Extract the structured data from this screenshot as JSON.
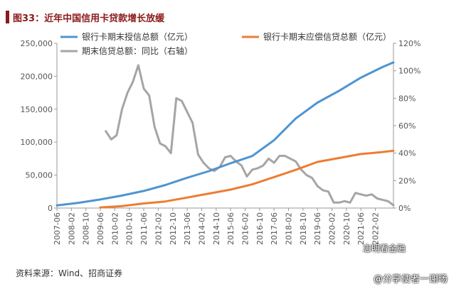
{
  "header": {
    "title": "图33：近年中国信用卡贷款增长放缓"
  },
  "footer": {
    "source": "资料来源：Wind、招商证券"
  },
  "watermarks": {
    "handle": "志明看金融",
    "weibo": "@分享使者一谢旸"
  },
  "chart_data": {
    "type": "line",
    "left_axis": {
      "ylim": [
        0,
        250000
      ],
      "ticks": [
        "0",
        "50,000",
        "100,000",
        "150,000",
        "200,000",
        "250,000"
      ]
    },
    "right_axis": {
      "ylim": [
        0,
        120
      ],
      "ticks": [
        "0%",
        "20%",
        "40%",
        "60%",
        "80%",
        "100%",
        "120%"
      ]
    },
    "x_ticks": [
      "2007-06",
      "2008-02",
      "2008-10",
      "2009-06",
      "2010-02",
      "2010-10",
      "2011-06",
      "2012-02",
      "2012-10",
      "2013-06",
      "2014-02",
      "2014-10",
      "2015-06",
      "2016-02",
      "2016-10",
      "2017-06",
      "2018-02",
      "2018-10",
      "2019-06",
      "2020-02",
      "2020-10",
      "2021-06",
      "2022-02"
    ],
    "x_start": "2007-06",
    "x_end": "2022-12",
    "grid": false,
    "legend_position": "top",
    "series": [
      {
        "name": "银行卡期末授信总额（亿元）",
        "color": "#4e95d0",
        "axis": "left",
        "x": [
          "2007-06",
          "2008-06",
          "2009-06",
          "2010-06",
          "2011-06",
          "2012-06",
          "2013-06",
          "2014-06",
          "2015-06",
          "2016-06",
          "2017-06",
          "2018-06",
          "2019-06",
          "2020-06",
          "2021-06",
          "2022-06",
          "2022-12"
        ],
        "values": [
          4000,
          8000,
          13000,
          19000,
          26000,
          35000,
          46000,
          56000,
          68000,
          79000,
          103000,
          136000,
          160000,
          178000,
          198000,
          214000,
          221000
        ]
      },
      {
        "name": "银行卡期末应偿信贷总额（亿元）",
        "color": "#ed7d31",
        "axis": "left",
        "x": [
          "2009-06",
          "2010-06",
          "2011-06",
          "2012-06",
          "2013-06",
          "2014-06",
          "2015-06",
          "2016-06",
          "2017-06",
          "2018-06",
          "2019-06",
          "2020-06",
          "2021-06",
          "2022-06",
          "2022-12"
        ],
        "values": [
          1000,
          3000,
          7000,
          10000,
          16000,
          22000,
          28000,
          36000,
          47000,
          58000,
          70000,
          76000,
          82000,
          85000,
          87000
        ]
      },
      {
        "name": "期末信贷总额：同比（右轴）",
        "color": "#a5a5a5",
        "axis": "right",
        "x": [
          "2009-09",
          "2009-12",
          "2010-03",
          "2010-06",
          "2010-09",
          "2010-12",
          "2011-03",
          "2011-06",
          "2011-09",
          "2011-12",
          "2012-03",
          "2012-06",
          "2012-09",
          "2012-12",
          "2013-03",
          "2013-06",
          "2013-09",
          "2013-12",
          "2014-03",
          "2014-06",
          "2014-09",
          "2014-12",
          "2015-03",
          "2015-06",
          "2015-09",
          "2015-12",
          "2016-03",
          "2016-06",
          "2016-09",
          "2016-12",
          "2017-03",
          "2017-06",
          "2017-09",
          "2017-12",
          "2018-03",
          "2018-06",
          "2018-09",
          "2018-12",
          "2019-03",
          "2019-06",
          "2019-09",
          "2019-12",
          "2020-03",
          "2020-06",
          "2020-09",
          "2020-12",
          "2021-03",
          "2021-06",
          "2021-09",
          "2021-12",
          "2022-03",
          "2022-06",
          "2022-09",
          "2022-12"
        ],
        "values": [
          56,
          50,
          53,
          72,
          84,
          92,
          104,
          87,
          82,
          59,
          47,
          45,
          40,
          80,
          78,
          70,
          62,
          39,
          33,
          29,
          27,
          30,
          37,
          38,
          34,
          31,
          23,
          28,
          29,
          31,
          36,
          33,
          38,
          38,
          36,
          34,
          28,
          24,
          22,
          16,
          13,
          12,
          4,
          4,
          5,
          4,
          11,
          10,
          9,
          10,
          7,
          6,
          5,
          2
        ]
      }
    ]
  }
}
